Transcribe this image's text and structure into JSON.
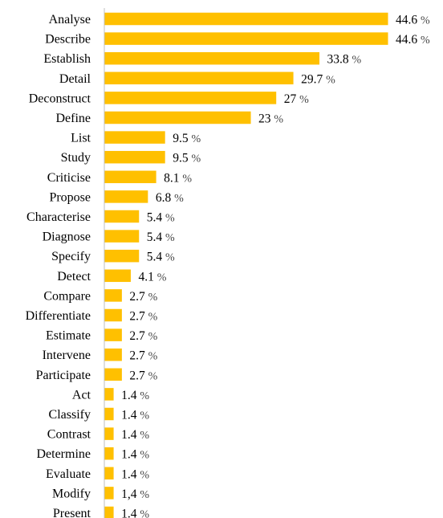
{
  "chart_data": {
    "type": "bar",
    "orientation": "horizontal",
    "title": "",
    "xlabel": "",
    "ylabel": "",
    "xlim": [
      0,
      44.6
    ],
    "grid": false,
    "legend": "none",
    "bar_color": "#FFC000",
    "axis_color": "#BFBFBF",
    "unit": "%",
    "categories": [
      "Analyse",
      "Describe",
      "Establish",
      "Detail",
      "Deconstruct",
      "Define",
      "List",
      "Study",
      "Criticise",
      "Propose",
      "Characterise",
      "Diagnose",
      "Specify",
      "Detect",
      "Compare",
      "Differentiate",
      "Estimate",
      "Intervene",
      "Participate",
      "Act",
      "Classify",
      "Contrast",
      "Determine",
      "Evaluate",
      "Modify",
      "Present"
    ],
    "values": [
      44.6,
      44.6,
      33.8,
      29.7,
      27,
      23,
      9.5,
      9.5,
      8.1,
      6.8,
      5.4,
      5.4,
      5.4,
      4.1,
      2.7,
      2.7,
      2.7,
      2.7,
      2.7,
      1.4,
      1.4,
      1.4,
      1.4,
      1.4,
      1.4,
      1.4
    ],
    "value_labels": [
      "44.6",
      "44.6",
      "33.8",
      "29.7",
      "27",
      "23",
      "9.5",
      "9.5",
      "8.1",
      "6.8",
      "5.4",
      "5.4",
      "5.4",
      "4.1",
      "2.7",
      "2.7",
      "2.7",
      "2.7",
      "2.7",
      "1.4",
      "1.4",
      "1.4",
      "1.4",
      "1.4",
      "1,4",
      "1.4"
    ]
  }
}
